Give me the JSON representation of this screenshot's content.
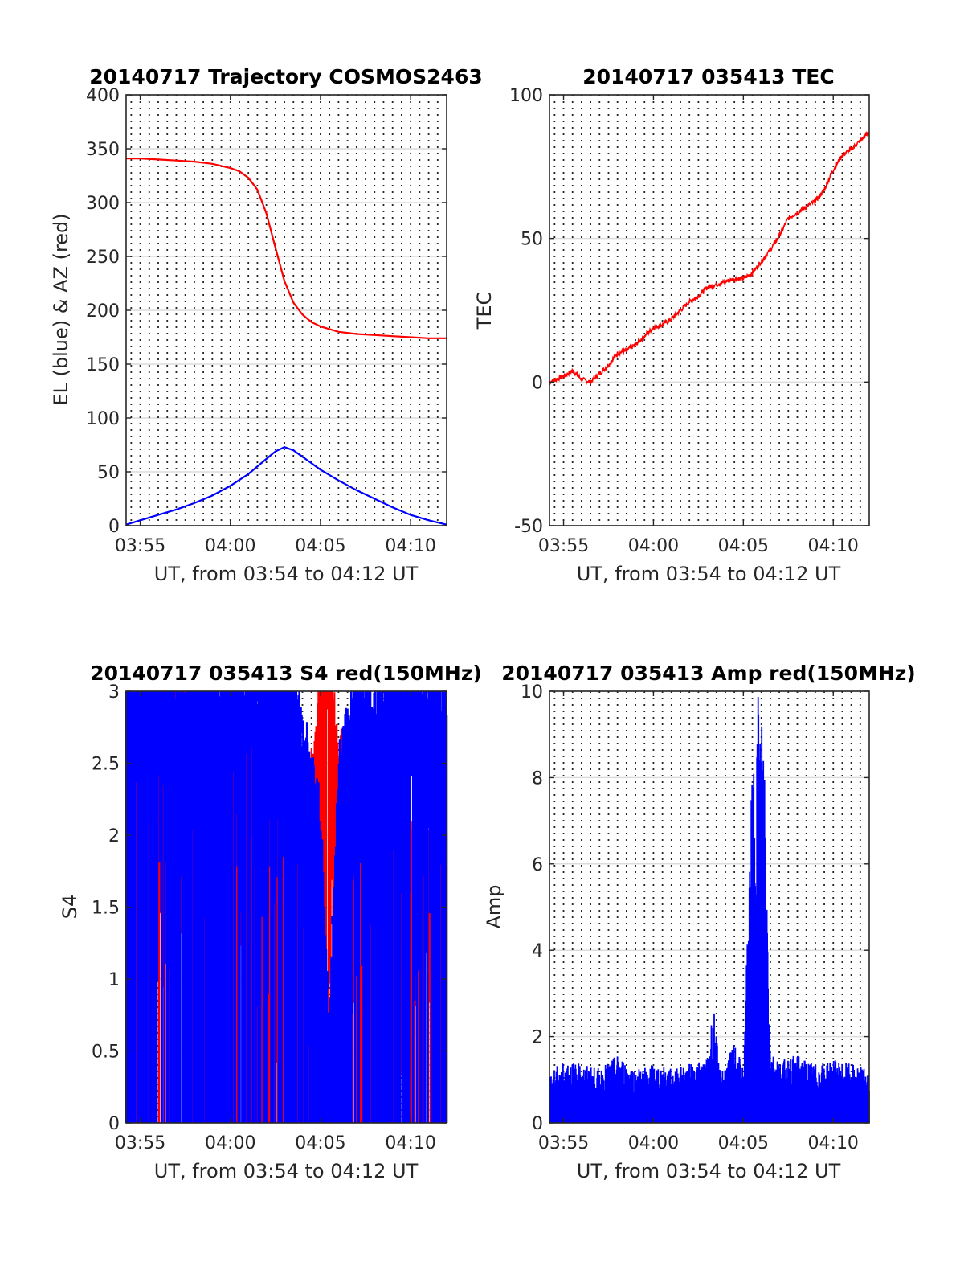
{
  "chart_data": [
    {
      "type": "line",
      "title": "20140717 Trajectory COSMOS2463",
      "xlabel": "UT, from 03:54 to 04:12 UT",
      "ylabel": "EL (blue) & AZ (red)",
      "xlim": [
        "03:54:13",
        "04:12:00"
      ],
      "ylim": [
        0,
        400
      ],
      "xticks": [
        "03:55",
        "04:00",
        "04:05",
        "04:10"
      ],
      "yticks": [
        "0",
        "50",
        "100",
        "150",
        "200",
        "250",
        "300",
        "350",
        "400"
      ],
      "grid": "on",
      "series": [
        {
          "color": "#ff0000",
          "x": [
            "03:54:13",
            "03:55:00",
            "03:56:00",
            "03:57:00",
            "03:58:00",
            "03:59:00",
            "04:00:00",
            "04:00:30",
            "04:01:00",
            "04:01:30",
            "04:02:00",
            "04:02:30",
            "04:03:00",
            "04:03:30",
            "04:04:00",
            "04:04:30",
            "04:05:00",
            "04:06:00",
            "04:07:00",
            "04:08:00",
            "04:09:00",
            "04:10:00",
            "04:11:00",
            "04:12:00"
          ],
          "values": [
            341,
            341,
            340,
            339,
            338,
            336,
            332,
            329,
            323,
            312,
            290,
            258,
            227,
            207,
            196,
            189,
            185,
            180,
            178,
            177,
            176,
            175,
            174,
            174
          ]
        },
        {
          "color": "#0000ff",
          "x": [
            "03:54:13",
            "03:55:00",
            "03:56:00",
            "03:57:00",
            "03:58:00",
            "03:59:00",
            "04:00:00",
            "04:01:00",
            "04:02:00",
            "04:02:30",
            "04:03:00",
            "04:03:30",
            "04:04:00",
            "04:05:00",
            "04:06:00",
            "04:07:00",
            "04:08:00",
            "04:09:00",
            "04:10:00",
            "04:11:00",
            "04:12:00"
          ],
          "values": [
            1,
            5,
            10,
            15,
            21,
            28,
            37,
            48,
            62,
            69,
            73,
            70,
            64,
            52,
            42,
            33,
            25,
            17,
            10,
            5,
            1
          ]
        }
      ]
    },
    {
      "type": "line",
      "title": "20140717 035413 TEC",
      "xlabel": "UT, from 03:54 to 04:12 UT",
      "ylabel": "TEC",
      "xlim": [
        "03:54:13",
        "04:12:00"
      ],
      "ylim": [
        -50,
        100
      ],
      "xticks": [
        "03:55",
        "04:00",
        "04:05",
        "04:10"
      ],
      "yticks": [
        "-50",
        "0",
        "50",
        "100"
      ],
      "grid": "on",
      "series": [
        {
          "color": "#ff0000",
          "x": [
            "03:54:13",
            "03:55:00",
            "03:55:30",
            "03:56:00",
            "03:56:30",
            "03:57:00",
            "03:57:30",
            "03:58:00",
            "03:58:30",
            "03:59:00",
            "03:59:30",
            "04:00:00",
            "04:00:30",
            "04:01:00",
            "04:01:30",
            "04:02:00",
            "04:02:30",
            "04:03:00",
            "04:03:30",
            "04:04:00",
            "04:04:30",
            "04:05:00",
            "04:05:30",
            "04:06:00",
            "04:06:30",
            "04:07:00",
            "04:07:30",
            "04:08:00",
            "04:08:30",
            "04:09:00",
            "04:09:30",
            "04:10:00",
            "04:10:30",
            "04:11:00",
            "04:11:30",
            "04:12:00"
          ],
          "values": [
            0,
            2,
            4,
            1,
            0,
            3,
            6,
            10,
            11,
            13,
            16,
            19,
            20,
            22,
            25,
            28,
            30,
            33,
            34,
            35,
            36,
            36,
            38,
            42,
            46,
            51,
            57,
            59,
            61,
            63,
            67,
            74,
            79,
            81,
            84,
            87
          ]
        }
      ]
    },
    {
      "type": "line",
      "title": "20140717 035413 S4 red(150MHz)",
      "xlabel": "UT, from 03:54 to 04:12 UT",
      "ylabel": "S4",
      "xlim": [
        "03:54:13",
        "04:12:00"
      ],
      "ylim": [
        0,
        3
      ],
      "xticks": [
        "03:55",
        "04:00",
        "04:05",
        "04:10"
      ],
      "yticks": [
        "0",
        "0.5",
        "1",
        "1.5",
        "2",
        "2.5",
        "3"
      ],
      "grid": "on",
      "series": [
        {
          "color": "#ff0000",
          "x": [
            "03:54:13",
            "03:55:00",
            "03:56:00",
            "03:57:00",
            "03:58:00",
            "03:59:00",
            "04:00:00",
            "04:01:00",
            "04:02:00",
            "04:03:00",
            "04:04:00",
            "04:05:00",
            "04:05:30",
            "04:06:00",
            "04:07:00",
            "04:08:00",
            "04:09:00",
            "04:10:00",
            "04:11:00",
            "04:12:00"
          ],
          "values": [
            2.8,
            2.1,
            2.6,
            2.9,
            2.7,
            2.4,
            2.5,
            2.6,
            2.2,
            1.7,
            1.5,
            2.9,
            3.0,
            2.4,
            2.2,
            2.3,
            2.0,
            1.8,
            1.7,
            1.8
          ]
        },
        {
          "color": "#0000ff",
          "x": [
            "03:54:13",
            "03:55:00",
            "03:56:00",
            "03:57:00",
            "03:58:00",
            "03:59:00",
            "04:00:00",
            "04:01:00",
            "04:02:00",
            "04:03:00",
            "04:04:00",
            "04:05:00",
            "04:05:30",
            "04:06:00",
            "04:07:00",
            "04:08:00",
            "04:09:00",
            "04:10:00",
            "04:11:00",
            "04:12:00"
          ],
          "values": [
            3.0,
            2.9,
            3.0,
            2.8,
            3.0,
            2.9,
            3.0,
            2.8,
            2.9,
            3.0,
            2.6,
            1.9,
            0.6,
            2.3,
            3.0,
            2.8,
            2.9,
            3.0,
            2.9,
            2.8
          ]
        }
      ]
    },
    {
      "type": "line",
      "title": "20140717 035413 Amp red(150MHz)",
      "xlabel": "UT, from 03:54 to 04:12 UT",
      "ylabel": "Amp",
      "xlim": [
        "03:54:13",
        "04:12:00"
      ],
      "ylim": [
        0,
        10
      ],
      "xticks": [
        "03:55",
        "04:00",
        "04:05",
        "04:10"
      ],
      "yticks": [
        "0",
        "2",
        "4",
        "6",
        "8",
        "10"
      ],
      "grid": "on",
      "series": [
        {
          "color": "#0000ff",
          "x": [
            "03:54:13",
            "03:55:00",
            "03:56:00",
            "03:57:00",
            "03:58:00",
            "03:59:00",
            "04:00:00",
            "04:01:00",
            "04:02:00",
            "04:03:00",
            "04:03:20",
            "04:03:40",
            "04:04:00",
            "04:04:30",
            "04:05:00",
            "04:05:30",
            "04:05:50",
            "04:06:10",
            "04:06:30",
            "04:07:00",
            "04:08:00",
            "04:09:00",
            "04:10:00",
            "04:11:00",
            "04:12:00"
          ],
          "values": [
            1.1,
            1.4,
            1.3,
            1.2,
            1.5,
            1.2,
            1.3,
            1.2,
            1.3,
            1.4,
            2.7,
            1.2,
            1.3,
            1.8,
            1.2,
            7.9,
            9.8,
            8.7,
            1.6,
            1.4,
            1.5,
            1.3,
            1.4,
            1.3,
            1.2
          ]
        }
      ]
    }
  ]
}
